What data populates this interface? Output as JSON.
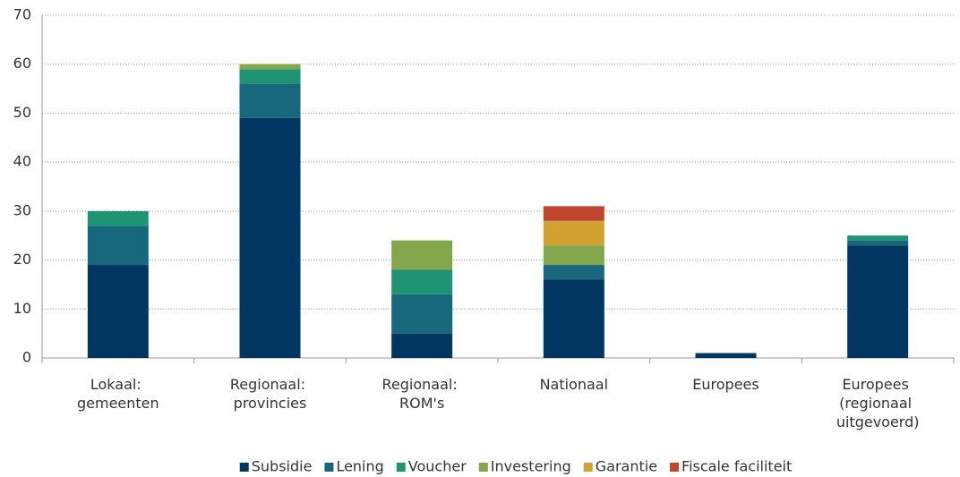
{
  "chart_data": {
    "type": "stacked_bar",
    "categories": [
      "Lokaal: gemeenten",
      "Regionaal: provincies",
      "Regionaal: ROM's",
      "Nationaal",
      "Europees",
      "Europees (regionaal uitgevoerd)"
    ],
    "series": [
      {
        "name": "Subsidie",
        "color": "#003660",
        "values": [
          19,
          49,
          5,
          16,
          1,
          23
        ]
      },
      {
        "name": "Lening",
        "color": "#17687d",
        "values": [
          8,
          7,
          8,
          3,
          0,
          1
        ]
      },
      {
        "name": "Voucher",
        "color": "#1f9474",
        "values": [
          3,
          3,
          5,
          0,
          0,
          1
        ]
      },
      {
        "name": "Investering",
        "color": "#84a64c",
        "values": [
          0,
          1,
          6,
          4,
          0,
          0
        ]
      },
      {
        "name": "Garantie",
        "color": "#d1a230",
        "values": [
          0,
          0,
          0,
          5,
          0,
          0
        ]
      },
      {
        "name": "Fiscale faciliteit",
        "color": "#c0452e",
        "values": [
          0,
          0,
          0,
          3,
          0,
          0
        ]
      }
    ],
    "ylim": [
      0,
      70
    ],
    "yticks": [
      0,
      10,
      20,
      30,
      40,
      50,
      60,
      70
    ],
    "grid": true,
    "legend": "bottom"
  }
}
